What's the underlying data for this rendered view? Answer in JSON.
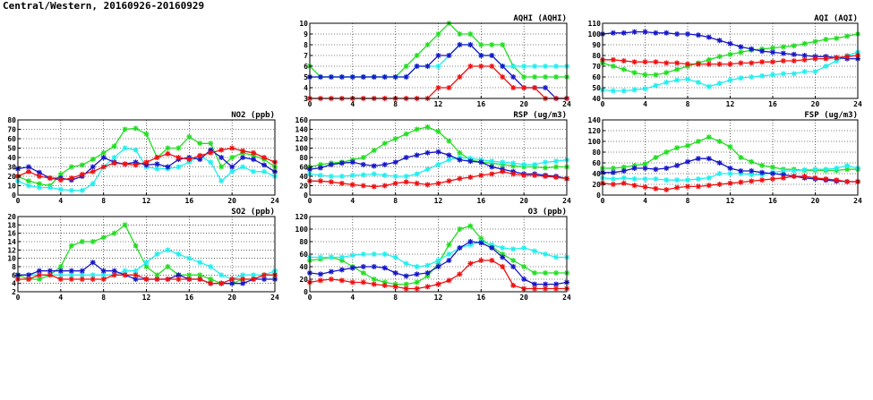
{
  "page": {
    "title": "Central/Western, 20160926-20160929"
  },
  "colors": {
    "green": "#22dd22",
    "cyan": "#22eeee",
    "blue": "#1616c8",
    "red": "#ee1010",
    "frame": "#000000",
    "grid": "#000000"
  },
  "chart_data": [
    {
      "id": "aqhi",
      "type": "line",
      "title": "AQHI (AQHI)",
      "xlim": [
        0,
        24
      ],
      "ylim": [
        3,
        10
      ],
      "xticks": [
        0,
        4,
        8,
        12,
        16,
        20,
        24
      ],
      "yticks": [
        3,
        4,
        5,
        6,
        7,
        8,
        9,
        10
      ],
      "grid": true,
      "x": [
        0,
        1,
        2,
        3,
        4,
        5,
        6,
        7,
        8,
        9,
        10,
        11,
        12,
        13,
        14,
        15,
        16,
        17,
        18,
        19,
        20,
        21,
        22,
        23,
        24
      ],
      "series": [
        {
          "color": "green",
          "values": [
            6,
            5,
            5,
            5,
            5,
            5,
            5,
            5,
            5,
            6,
            7,
            8,
            9,
            10,
            9,
            9,
            8,
            8,
            8,
            6,
            5,
            5,
            5,
            5,
            5
          ]
        },
        {
          "color": "cyan",
          "values": [
            5,
            5,
            5,
            5,
            5,
            5,
            5,
            5,
            5,
            5,
            6,
            6,
            6,
            7,
            8,
            8,
            7,
            7,
            6,
            6,
            6,
            6,
            6,
            6,
            6
          ]
        },
        {
          "color": "blue",
          "values": [
            5,
            5,
            5,
            5,
            5,
            5,
            5,
            5,
            5,
            5,
            6,
            6,
            7,
            7,
            8,
            8,
            7,
            7,
            6,
            5,
            4,
            4,
            4,
            3,
            3
          ]
        },
        {
          "color": "red",
          "values": [
            3,
            3,
            3,
            3,
            3,
            3,
            3,
            3,
            3,
            3,
            3,
            3,
            4,
            4,
            5,
            6,
            6,
            6,
            5,
            4,
            4,
            4,
            3,
            3,
            3
          ]
        }
      ]
    },
    {
      "id": "aqi",
      "type": "line",
      "title": "AQI (AQI)",
      "xlim": [
        0,
        24
      ],
      "ylim": [
        40,
        110
      ],
      "xticks": [
        0,
        4,
        8,
        12,
        16,
        20,
        24
      ],
      "yticks": [
        40,
        50,
        60,
        70,
        80,
        90,
        100,
        110
      ],
      "grid": true,
      "x": [
        0,
        1,
        2,
        3,
        4,
        5,
        6,
        7,
        8,
        9,
        10,
        11,
        12,
        13,
        14,
        15,
        16,
        17,
        18,
        19,
        20,
        21,
        22,
        23,
        24
      ],
      "series": [
        {
          "color": "green",
          "values": [
            73,
            70,
            67,
            64,
            62,
            62,
            64,
            67,
            70,
            73,
            76,
            79,
            81,
            83,
            85,
            86,
            87,
            88,
            89,
            91,
            93,
            95,
            96,
            98,
            100
          ]
        },
        {
          "color": "cyan",
          "values": [
            48,
            47,
            47,
            48,
            49,
            52,
            55,
            57,
            58,
            55,
            51,
            54,
            57,
            59,
            60,
            61,
            62,
            63,
            63,
            65,
            65,
            70,
            75,
            80,
            83
          ]
        },
        {
          "color": "blue",
          "values": [
            100,
            101,
            101,
            102,
            102,
            101,
            101,
            100,
            100,
            99,
            97,
            94,
            91,
            88,
            86,
            84,
            83,
            82,
            81,
            80,
            79,
            79,
            78,
            77,
            77
          ]
        },
        {
          "color": "red",
          "values": [
            76,
            76,
            75,
            74,
            74,
            74,
            73,
            73,
            72,
            72,
            72,
            72,
            72,
            73,
            73,
            74,
            74,
            75,
            75,
            76,
            77,
            77,
            78,
            79,
            80
          ]
        }
      ]
    },
    {
      "id": "no2",
      "type": "line",
      "title": "NO2 (ppb)",
      "xlim": [
        0,
        24
      ],
      "ylim": [
        0,
        80
      ],
      "xticks": [
        0,
        4,
        8,
        12,
        16,
        20,
        24
      ],
      "yticks": [
        0,
        10,
        20,
        30,
        40,
        50,
        60,
        70,
        80
      ],
      "grid": true,
      "x": [
        0,
        1,
        2,
        3,
        4,
        5,
        6,
        7,
        8,
        9,
        10,
        11,
        12,
        13,
        14,
        15,
        16,
        17,
        18,
        19,
        20,
        21,
        22,
        23,
        24
      ],
      "series": [
        {
          "color": "green",
          "values": [
            20,
            15,
            12,
            10,
            22,
            30,
            32,
            38,
            45,
            52,
            70,
            71,
            65,
            40,
            50,
            50,
            62,
            55,
            55,
            30,
            40,
            45,
            42,
            38,
            30
          ]
        },
        {
          "color": "cyan",
          "values": [
            15,
            10,
            8,
            8,
            6,
            5,
            5,
            12,
            30,
            40,
            50,
            48,
            30,
            28,
            28,
            30,
            35,
            42,
            35,
            15,
            25,
            30,
            25,
            25,
            20
          ]
        },
        {
          "color": "blue",
          "values": [
            28,
            30,
            24,
            18,
            18,
            16,
            20,
            30,
            40,
            35,
            33,
            35,
            32,
            33,
            30,
            38,
            40,
            38,
            48,
            40,
            30,
            40,
            38,
            32,
            25
          ]
        },
        {
          "color": "red",
          "values": [
            20,
            25,
            20,
            18,
            16,
            18,
            22,
            25,
            30,
            34,
            33,
            32,
            35,
            40,
            44,
            40,
            38,
            42,
            45,
            48,
            50,
            47,
            45,
            40,
            35
          ]
        }
      ]
    },
    {
      "id": "rsp",
      "type": "line",
      "title": "RSP (ug/m3)",
      "xlim": [
        0,
        24
      ],
      "ylim": [
        0,
        160
      ],
      "xticks": [
        0,
        4,
        8,
        12,
        16,
        20,
        24
      ],
      "yticks": [
        0,
        20,
        40,
        60,
        80,
        100,
        120,
        140,
        160
      ],
      "grid": true,
      "x": [
        0,
        1,
        2,
        3,
        4,
        5,
        6,
        7,
        8,
        9,
        10,
        11,
        12,
        13,
        14,
        15,
        16,
        17,
        18,
        19,
        20,
        21,
        22,
        23,
        24
      ],
      "series": [
        {
          "color": "green",
          "values": [
            60,
            65,
            68,
            70,
            75,
            80,
            95,
            110,
            120,
            130,
            140,
            145,
            135,
            115,
            90,
            75,
            70,
            68,
            65,
            62,
            60,
            60,
            58,
            60,
            60
          ]
        },
        {
          "color": "cyan",
          "values": [
            45,
            42,
            40,
            40,
            42,
            43,
            45,
            42,
            40,
            40,
            45,
            55,
            65,
            75,
            80,
            78,
            75,
            72,
            70,
            68,
            65,
            65,
            70,
            72,
            75
          ]
        },
        {
          "color": "blue",
          "values": [
            55,
            58,
            65,
            68,
            70,
            65,
            62,
            65,
            70,
            80,
            85,
            90,
            92,
            85,
            75,
            72,
            70,
            60,
            55,
            50,
            45,
            45,
            42,
            40,
            35
          ]
        },
        {
          "color": "red",
          "values": [
            30,
            30,
            28,
            25,
            22,
            20,
            18,
            20,
            25,
            28,
            25,
            22,
            25,
            30,
            35,
            38,
            42,
            45,
            50,
            45,
            42,
            42,
            40,
            38,
            35
          ]
        }
      ]
    },
    {
      "id": "fsp",
      "type": "line",
      "title": "FSP (ug/m3)",
      "xlim": [
        0,
        24
      ],
      "ylim": [
        0,
        140
      ],
      "xticks": [
        0,
        4,
        8,
        12,
        16,
        20,
        24
      ],
      "yticks": [
        0,
        20,
        40,
        60,
        80,
        100,
        120,
        140
      ],
      "grid": true,
      "x": [
        0,
        1,
        2,
        3,
        4,
        5,
        6,
        7,
        8,
        9,
        10,
        11,
        12,
        13,
        14,
        15,
        16,
        17,
        18,
        19,
        20,
        21,
        22,
        23,
        24
      ],
      "series": [
        {
          "color": "green",
          "values": [
            50,
            50,
            52,
            55,
            58,
            70,
            80,
            88,
            92,
            100,
            108,
            100,
            90,
            70,
            62,
            55,
            52,
            48,
            48,
            46,
            46,
            46,
            46,
            48,
            48
          ]
        },
        {
          "color": "cyan",
          "values": [
            32,
            30,
            32,
            30,
            30,
            30,
            28,
            28,
            28,
            30,
            32,
            40,
            40,
            40,
            38,
            38,
            42,
            45,
            45,
            47,
            48,
            48,
            50,
            55,
            50
          ]
        },
        {
          "color": "blue",
          "values": [
            42,
            42,
            45,
            50,
            50,
            48,
            50,
            55,
            62,
            68,
            68,
            60,
            50,
            45,
            45,
            42,
            40,
            38,
            35,
            32,
            30,
            28,
            26,
            25,
            25
          ]
        },
        {
          "color": "red",
          "values": [
            22,
            20,
            22,
            18,
            15,
            12,
            10,
            14,
            16,
            16,
            18,
            20,
            22,
            24,
            26,
            28,
            30,
            32,
            35,
            35,
            32,
            30,
            28,
            25,
            25
          ]
        }
      ]
    },
    {
      "id": "so2",
      "type": "line",
      "title": "SO2 (ppb)",
      "xlim": [
        0,
        24
      ],
      "ylim": [
        2,
        20
      ],
      "xticks": [
        0,
        4,
        8,
        12,
        16,
        20,
        24
      ],
      "yticks": [
        2,
        4,
        6,
        8,
        10,
        12,
        14,
        16,
        18,
        20
      ],
      "grid": true,
      "x": [
        0,
        1,
        2,
        3,
        4,
        5,
        6,
        7,
        8,
        9,
        10,
        11,
        12,
        13,
        14,
        15,
        16,
        17,
        18,
        19,
        20,
        21,
        22,
        23,
        24
      ],
      "series": [
        {
          "color": "green",
          "values": [
            6,
            5,
            5,
            6,
            8,
            13,
            14,
            14,
            15,
            16,
            18,
            13,
            8,
            6,
            8,
            6,
            6,
            6,
            5,
            4,
            4,
            5,
            5,
            6,
            6
          ]
        },
        {
          "color": "cyan",
          "values": [
            6,
            6,
            6,
            6,
            6,
            6,
            6,
            6,
            6,
            6,
            7,
            7,
            9,
            11,
            12,
            11,
            10,
            9,
            8,
            6,
            5,
            6,
            6,
            6,
            7
          ]
        },
        {
          "color": "blue",
          "values": [
            6,
            6,
            7,
            7,
            7,
            7,
            7,
            9,
            7,
            7,
            6,
            5,
            5,
            5,
            5,
            6,
            5,
            5,
            4,
            4,
            4,
            4,
            5,
            5,
            5
          ]
        },
        {
          "color": "red",
          "values": [
            5,
            5,
            6,
            6,
            5,
            5,
            5,
            5,
            5,
            6,
            6,
            6,
            5,
            5,
            5,
            5,
            5,
            5,
            4,
            4,
            5,
            5,
            5,
            6,
            6
          ]
        }
      ]
    },
    {
      "id": "o3",
      "type": "line",
      "title": "O3 (ppb)",
      "xlim": [
        0,
        24
      ],
      "ylim": [
        0,
        120
      ],
      "xticks": [
        0,
        4,
        8,
        12,
        16,
        20,
        24
      ],
      "yticks": [
        0,
        20,
        40,
        60,
        80,
        100,
        120
      ],
      "grid": true,
      "x": [
        0,
        1,
        2,
        3,
        4,
        5,
        6,
        7,
        8,
        9,
        10,
        11,
        12,
        13,
        14,
        15,
        16,
        17,
        18,
        19,
        20,
        21,
        22,
        23,
        24
      ],
      "series": [
        {
          "color": "green",
          "values": [
            50,
            52,
            55,
            50,
            40,
            30,
            20,
            15,
            12,
            12,
            15,
            25,
            45,
            75,
            100,
            105,
            85,
            72,
            60,
            50,
            40,
            30,
            30,
            30,
            30
          ]
        },
        {
          "color": "cyan",
          "values": [
            55,
            55,
            55,
            55,
            58,
            60,
            60,
            60,
            55,
            45,
            40,
            42,
            50,
            60,
            70,
            75,
            80,
            75,
            70,
            68,
            70,
            65,
            60,
            55,
            55
          ]
        },
        {
          "color": "blue",
          "values": [
            30,
            28,
            32,
            35,
            38,
            40,
            40,
            38,
            30,
            25,
            28,
            30,
            40,
            50,
            70,
            80,
            78,
            70,
            55,
            40,
            20,
            12,
            12,
            12,
            15
          ]
        },
        {
          "color": "red",
          "values": [
            15,
            18,
            20,
            18,
            15,
            15,
            12,
            10,
            8,
            5,
            5,
            8,
            12,
            18,
            28,
            45,
            50,
            50,
            40,
            10,
            5,
            5,
            5,
            5,
            5
          ]
        }
      ]
    }
  ]
}
